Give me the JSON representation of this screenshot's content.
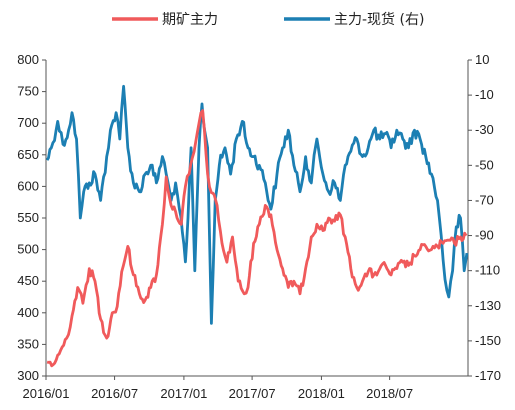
{
  "chart_data": {
    "type": "line",
    "title": "",
    "xlabel": "",
    "ylabel": "",
    "x_range": [
      "2016-01-01",
      "2019-01-25"
    ],
    "x_ticks": [
      "2016/01",
      "2016/07",
      "2017/01",
      "2017/07",
      "2018/01",
      "2018/07"
    ],
    "left_ylim": [
      300,
      800
    ],
    "left_yticks": [
      300,
      350,
      400,
      450,
      500,
      550,
      600,
      650,
      700,
      750,
      800
    ],
    "right_ylim": [
      -170,
      10
    ],
    "right_yticks": [
      10,
      -10,
      -30,
      -50,
      -70,
      -90,
      -110,
      -130,
      -150,
      -170
    ],
    "grid": false,
    "legend_position": "top",
    "series": [
      {
        "name": "期矿主力",
        "axis": "left",
        "color": "#f05a5b",
        "points": [
          [
            "2016-01-04",
            322
          ],
          [
            "2016-01-20",
            318
          ],
          [
            "2016-02-05",
            335
          ],
          [
            "2016-02-25",
            360
          ],
          [
            "2016-03-10",
            395
          ],
          [
            "2016-03-25",
            440
          ],
          [
            "2016-04-08",
            415
          ],
          [
            "2016-04-25",
            470
          ],
          [
            "2016-05-10",
            450
          ],
          [
            "2016-05-25",
            390
          ],
          [
            "2016-06-10",
            360
          ],
          [
            "2016-06-25",
            400
          ],
          [
            "2016-07-08",
            410
          ],
          [
            "2016-07-20",
            465
          ],
          [
            "2016-08-05",
            505
          ],
          [
            "2016-08-20",
            460
          ],
          [
            "2016-09-05",
            430
          ],
          [
            "2016-09-20",
            420
          ],
          [
            "2016-10-05",
            440
          ],
          [
            "2016-10-20",
            460
          ],
          [
            "2016-11-05",
            540
          ],
          [
            "2016-11-15",
            615
          ],
          [
            "2016-11-28",
            570
          ],
          [
            "2016-12-10",
            560
          ],
          [
            "2016-12-25",
            540
          ],
          [
            "2017-01-05",
            600
          ],
          [
            "2017-01-15",
            620
          ],
          [
            "2017-01-28",
            655
          ],
          [
            "2017-02-10",
            700
          ],
          [
            "2017-02-20",
            720
          ],
          [
            "2017-03-05",
            620
          ],
          [
            "2017-03-15",
            590
          ],
          [
            "2017-03-30",
            570
          ],
          [
            "2017-04-12",
            510
          ],
          [
            "2017-04-25",
            480
          ],
          [
            "2017-05-10",
            520
          ],
          [
            "2017-05-25",
            450
          ],
          [
            "2017-06-10",
            430
          ],
          [
            "2017-06-20",
            440
          ],
          [
            "2017-07-05",
            510
          ],
          [
            "2017-07-20",
            540
          ],
          [
            "2017-08-05",
            570
          ],
          [
            "2017-08-20",
            555
          ],
          [
            "2017-09-05",
            500
          ],
          [
            "2017-09-20",
            470
          ],
          [
            "2017-10-05",
            440
          ],
          [
            "2017-10-20",
            450
          ],
          [
            "2017-11-05",
            430
          ],
          [
            "2017-11-20",
            470
          ],
          [
            "2017-12-05",
            520
          ],
          [
            "2017-12-20",
            540
          ],
          [
            "2018-01-05",
            530
          ],
          [
            "2018-01-20",
            550
          ],
          [
            "2018-02-05",
            545
          ],
          [
            "2018-02-20",
            555
          ],
          [
            "2018-03-05",
            520
          ],
          [
            "2018-03-20",
            470
          ],
          [
            "2018-04-05",
            440
          ],
          [
            "2018-04-20",
            450
          ],
          [
            "2018-05-05",
            465
          ],
          [
            "2018-05-20",
            460
          ],
          [
            "2018-06-05",
            470
          ],
          [
            "2018-06-20",
            475
          ],
          [
            "2018-07-05",
            460
          ],
          [
            "2018-07-20",
            470
          ],
          [
            "2018-08-05",
            480
          ],
          [
            "2018-08-20",
            475
          ],
          [
            "2018-09-05",
            490
          ],
          [
            "2018-09-20",
            500
          ],
          [
            "2018-10-05",
            505
          ],
          [
            "2018-10-20",
            500
          ],
          [
            "2018-11-05",
            505
          ],
          [
            "2018-11-20",
            510
          ],
          [
            "2018-12-05",
            515
          ],
          [
            "2018-12-20",
            510
          ],
          [
            "2019-01-05",
            520
          ],
          [
            "2019-01-20",
            522
          ]
        ]
      },
      {
        "name": "主力-现货 (右)",
        "axis": "right",
        "color": "#1c7fb3",
        "points": [
          [
            "2016-01-04",
            -47
          ],
          [
            "2016-01-15",
            -40
          ],
          [
            "2016-02-01",
            -25
          ],
          [
            "2016-02-15",
            -38
          ],
          [
            "2016-03-01",
            -30
          ],
          [
            "2016-03-10",
            -20
          ],
          [
            "2016-03-22",
            -35
          ],
          [
            "2016-04-01",
            -80
          ],
          [
            "2016-04-10",
            -65
          ],
          [
            "2016-04-25",
            -60
          ],
          [
            "2016-05-10",
            -55
          ],
          [
            "2016-05-25",
            -70
          ],
          [
            "2016-06-10",
            -45
          ],
          [
            "2016-06-20",
            -30
          ],
          [
            "2016-07-05",
            -20
          ],
          [
            "2016-07-15",
            -35
          ],
          [
            "2016-07-25",
            -5
          ],
          [
            "2016-08-05",
            -40
          ],
          [
            "2016-08-20",
            -60
          ],
          [
            "2016-09-05",
            -65
          ],
          [
            "2016-09-20",
            -55
          ],
          [
            "2016-10-05",
            -50
          ],
          [
            "2016-10-20",
            -60
          ],
          [
            "2016-11-05",
            -45
          ],
          [
            "2016-11-15",
            -55
          ],
          [
            "2016-11-28",
            -70
          ],
          [
            "2016-12-10",
            -60
          ],
          [
            "2016-12-20",
            -75
          ],
          [
            "2017-01-05",
            -105
          ],
          [
            "2017-01-12",
            -80
          ],
          [
            "2017-01-20",
            -40
          ],
          [
            "2017-01-30",
            -110
          ],
          [
            "2017-02-10",
            -40
          ],
          [
            "2017-02-18",
            -15
          ],
          [
            "2017-02-25",
            -30
          ],
          [
            "2017-03-05",
            -40
          ],
          [
            "2017-03-15",
            -140
          ],
          [
            "2017-03-25",
            -70
          ],
          [
            "2017-04-05",
            -50
          ],
          [
            "2017-04-20",
            -40
          ],
          [
            "2017-05-05",
            -55
          ],
          [
            "2017-05-20",
            -35
          ],
          [
            "2017-06-05",
            -25
          ],
          [
            "2017-06-20",
            -40
          ],
          [
            "2017-07-05",
            -45
          ],
          [
            "2017-07-20",
            -50
          ],
          [
            "2017-08-05",
            -60
          ],
          [
            "2017-08-20",
            -75
          ],
          [
            "2017-09-05",
            -55
          ],
          [
            "2017-09-20",
            -40
          ],
          [
            "2017-10-05",
            -30
          ],
          [
            "2017-10-20",
            -50
          ],
          [
            "2017-11-05",
            -65
          ],
          [
            "2017-11-20",
            -45
          ],
          [
            "2017-12-05",
            -60
          ],
          [
            "2017-12-20",
            -35
          ],
          [
            "2018-01-05",
            -55
          ],
          [
            "2018-01-20",
            -65
          ],
          [
            "2018-02-05",
            -60
          ],
          [
            "2018-02-20",
            -70
          ],
          [
            "2018-03-05",
            -50
          ],
          [
            "2018-03-20",
            -42
          ],
          [
            "2018-04-05",
            -35
          ],
          [
            "2018-04-20",
            -45
          ],
          [
            "2018-05-05",
            -40
          ],
          [
            "2018-05-20",
            -30
          ],
          [
            "2018-06-05",
            -35
          ],
          [
            "2018-06-20",
            -32
          ],
          [
            "2018-07-05",
            -40
          ],
          [
            "2018-07-20",
            -30
          ],
          [
            "2018-08-05",
            -35
          ],
          [
            "2018-08-20",
            -40
          ],
          [
            "2018-09-05",
            -30
          ],
          [
            "2018-09-20",
            -35
          ],
          [
            "2018-10-05",
            -45
          ],
          [
            "2018-10-20",
            -55
          ],
          [
            "2018-11-05",
            -70
          ],
          [
            "2018-11-15",
            -90
          ],
          [
            "2018-11-25",
            -115
          ],
          [
            "2018-12-05",
            -125
          ],
          [
            "2018-12-15",
            -110
          ],
          [
            "2018-12-25",
            -85
          ],
          [
            "2019-01-05",
            -80
          ],
          [
            "2019-01-15",
            -110
          ],
          [
            "2019-01-22",
            -100
          ]
        ]
      }
    ]
  }
}
